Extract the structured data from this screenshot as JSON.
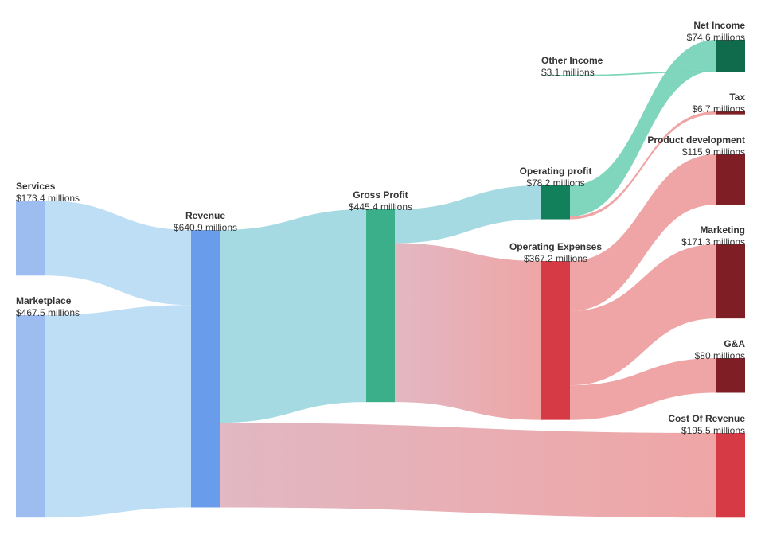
{
  "chart_data": {
    "type": "sankey",
    "unit_suffix": " millions",
    "currency_prefix": "$",
    "colors": {
      "blue_node": "#9dbdf0",
      "revenue_node": "#6a9cec",
      "green_node": "#3aaf8a",
      "op_profit_node": "#13805c",
      "net_income_node": "#0f6b4c",
      "red_node": "#d63b45",
      "dark_red_node": "#7f1f25",
      "blue_link": "#badcf5",
      "teal_link": "#a0d8e0",
      "green_link": "#78d4b8",
      "pink_link": "#e0b4c0",
      "red_link": "#eea0a0"
    },
    "nodes": [
      {
        "id": "services",
        "name": "Services",
        "value": 173.4,
        "value_label": "$173.4 millions"
      },
      {
        "id": "marketplace",
        "name": "Marketplace",
        "value": 467.5,
        "value_label": "$467.5 millions"
      },
      {
        "id": "revenue",
        "name": "Revenue",
        "value": 640.9,
        "value_label": "$640.9 millions"
      },
      {
        "id": "gross_profit",
        "name": "Gross Profit",
        "value": 445.4,
        "value_label": "$445.4 millions"
      },
      {
        "id": "cost_of_revenue",
        "name": "Cost Of Revenue",
        "value": 195.5,
        "value_label": "$195.5 millions"
      },
      {
        "id": "operating_profit",
        "name": "Operating profit",
        "value": 78.2,
        "value_label": "$78.2 millions"
      },
      {
        "id": "operating_expenses",
        "name": "Operating Expenses",
        "value": 367.2,
        "value_label": "$367.2 millions"
      },
      {
        "id": "other_income",
        "name": "Other Income",
        "value": 3.1,
        "value_label": "$3.1 millions"
      },
      {
        "id": "net_income",
        "name": "Net Income",
        "value": 74.6,
        "value_label": "$74.6 millions"
      },
      {
        "id": "tax",
        "name": "Tax",
        "value": 6.7,
        "value_label": "$6.7 millions"
      },
      {
        "id": "product_development",
        "name": "Product development",
        "value": 115.9,
        "value_label": "$115.9 millions"
      },
      {
        "id": "marketing",
        "name": "Marketing",
        "value": 171.3,
        "value_label": "$171.3 millions"
      },
      {
        "id": "g_and_a",
        "name": "G&A",
        "value": 80,
        "value_label": "$80 millions"
      }
    ],
    "links": [
      {
        "source": "services",
        "target": "revenue",
        "value": 173.4
      },
      {
        "source": "marketplace",
        "target": "revenue",
        "value": 467.5
      },
      {
        "source": "revenue",
        "target": "gross_profit",
        "value": 445.4
      },
      {
        "source": "revenue",
        "target": "cost_of_revenue",
        "value": 195.5
      },
      {
        "source": "gross_profit",
        "target": "operating_profit",
        "value": 78.2
      },
      {
        "source": "gross_profit",
        "target": "operating_expenses",
        "value": 367.2
      },
      {
        "source": "operating_profit",
        "target": "net_income",
        "value": 71.5
      },
      {
        "source": "other_income",
        "target": "net_income",
        "value": 3.1
      },
      {
        "source": "operating_profit",
        "target": "tax",
        "value": 6.7
      },
      {
        "source": "operating_expenses",
        "target": "product_development",
        "value": 115.9
      },
      {
        "source": "operating_expenses",
        "target": "marketing",
        "value": 171.3
      },
      {
        "source": "operating_expenses",
        "target": "g_and_a",
        "value": 80
      }
    ]
  }
}
